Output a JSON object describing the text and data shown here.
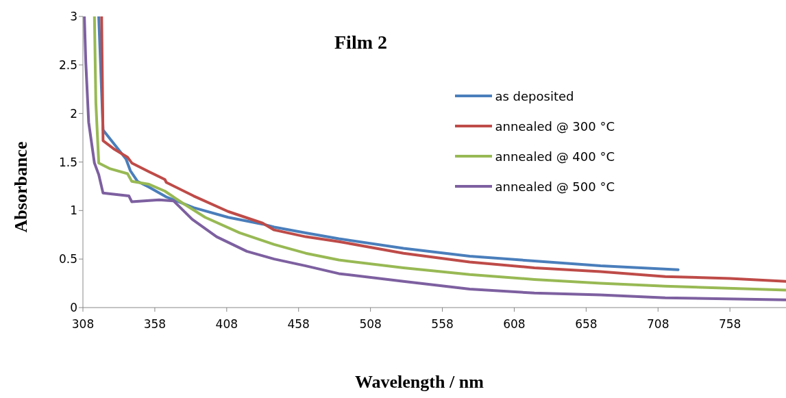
{
  "chart_data": {
    "type": "line",
    "title": "Film 2",
    "xlabel": "Wavelength / nm",
    "ylabel": "Absorbance",
    "xlim": [
      308,
      797
    ],
    "xticks": [
      308,
      358,
      408,
      458,
      508,
      558,
      608,
      658,
      708,
      758
    ],
    "ylim": [
      0,
      3
    ],
    "yticks": [
      0,
      0.5,
      1,
      1.5,
      2,
      2.5,
      3
    ],
    "grid": false,
    "legend": "top right",
    "series": [
      {
        "name": "as deposited",
        "color": "#4a7ebb",
        "x": [
          319,
          322,
          330,
          338,
          341,
          346,
          354,
          366,
          385,
          409,
          433,
          441,
          463,
          486,
          531,
          577,
          622,
          668,
          722
        ],
        "values": [
          3,
          1.83,
          1.68,
          1.53,
          1.41,
          1.3,
          1.24,
          1.14,
          1.03,
          0.93,
          0.86,
          0.83,
          0.77,
          0.71,
          0.61,
          0.53,
          0.48,
          0.43,
          0.39
        ]
      },
      {
        "name": "annealed @ 300 °C",
        "color": "#be4b48",
        "x": [
          321,
          322,
          330,
          339,
          342,
          354,
          365,
          366,
          385,
          409,
          433,
          441,
          463,
          486,
          531,
          577,
          622,
          668,
          713,
          758,
          797
        ],
        "values": [
          3,
          1.72,
          1.63,
          1.55,
          1.49,
          1.4,
          1.32,
          1.29,
          1.15,
          0.99,
          0.87,
          0.8,
          0.73,
          0.68,
          0.56,
          0.47,
          0.41,
          0.37,
          0.32,
          0.3,
          0.27
        ]
      },
      {
        "name": "annealed @ 400 °C",
        "color": "#98b954",
        "x": [
          316,
          317,
          319,
          327,
          339,
          342,
          354,
          365,
          377,
          393,
          417,
          441,
          463,
          486,
          531,
          577,
          622,
          668,
          713,
          797
        ],
        "values": [
          3,
          2.11,
          1.49,
          1.43,
          1.38,
          1.3,
          1.27,
          1.2,
          1.08,
          0.93,
          0.77,
          0.65,
          0.56,
          0.49,
          0.41,
          0.34,
          0.29,
          0.25,
          0.22,
          0.18
        ]
      },
      {
        "name": "annealed @ 500 °C",
        "color": "#7d60a0",
        "x": [
          309,
          310,
          312,
          316,
          319,
          322,
          340,
          342,
          361,
          371,
          384,
          401,
          422,
          441,
          463,
          486,
          531,
          577,
          622,
          668,
          713,
          797
        ],
        "values": [
          3,
          2.53,
          1.91,
          1.49,
          1.37,
          1.18,
          1.15,
          1.09,
          1.11,
          1.1,
          0.91,
          0.73,
          0.58,
          0.5,
          0.43,
          0.35,
          0.27,
          0.19,
          0.15,
          0.13,
          0.1,
          0.08
        ]
      }
    ]
  }
}
